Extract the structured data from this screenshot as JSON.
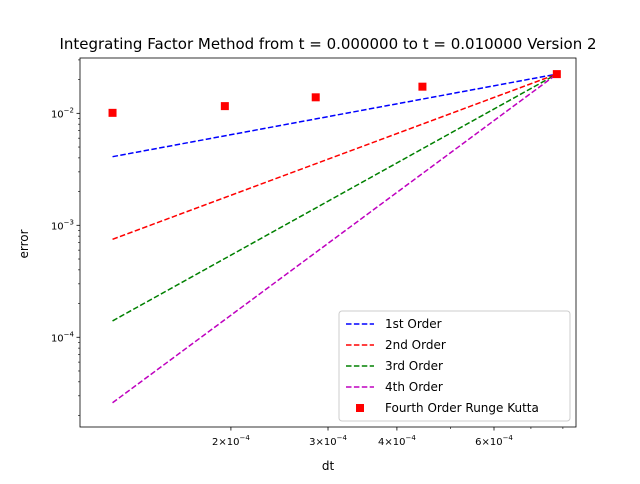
{
  "chart_data": {
    "type": "scatter",
    "title": "Integrating Factor Method from t = 0.000000 to t = 0.010000 Version 2",
    "xlabel": "dt",
    "ylabel": "error",
    "xscale": "log",
    "yscale": "log",
    "xlim": [
      0.0001065,
      0.000845
    ],
    "ylim": [
      1.58e-05,
      0.0312
    ],
    "grid": false,
    "legend_position": "lower-right",
    "x_ticks": [
      {
        "value": 0.0002,
        "base": "2×10",
        "exp": "−4"
      },
      {
        "value": 0.0003,
        "base": "3×10",
        "exp": "−4"
      },
      {
        "value": 0.0004,
        "base": "4×10",
        "exp": "−4"
      },
      {
        "value": 0.0006,
        "base": "6×10",
        "exp": "−4"
      }
    ],
    "x_minor_ticks": [
      0.0005,
      0.0007,
      0.0008
    ],
    "y_ticks": [
      {
        "value": 0.0001,
        "base": "10",
        "exp": "−4"
      },
      {
        "value": 0.001,
        "base": "10",
        "exp": "−3"
      },
      {
        "value": 0.01,
        "base": "10",
        "exp": "−2"
      }
    ],
    "series": [
      {
        "name": "1st Order",
        "kind": "line",
        "style": "dashed",
        "color": "#0000ff",
        "x": [
          0.000122,
          0.00078
        ],
        "y": [
          0.0041,
          0.0224
        ]
      },
      {
        "name": "2nd Order",
        "kind": "line",
        "style": "dashed",
        "color": "#ff0000",
        "x": [
          0.000122,
          0.00078
        ],
        "y": [
          0.00075,
          0.0224
        ]
      },
      {
        "name": "3rd Order",
        "kind": "line",
        "style": "dashed",
        "color": "#008000",
        "x": [
          0.000122,
          0.00078
        ],
        "y": [
          0.00014,
          0.0224
        ]
      },
      {
        "name": "4th Order",
        "kind": "line",
        "style": "dashed",
        "color": "#bf00bf",
        "x": [
          0.000122,
          0.00078
        ],
        "y": [
          2.6e-05,
          0.0224
        ]
      },
      {
        "name": "Fourth Order Runge Kutta",
        "kind": "marker",
        "marker": "square",
        "color": "#ff0000",
        "x": [
          0.000122,
          0.000195,
          0.000285,
          0.000445,
          0.00078
        ],
        "y": [
          0.0101,
          0.0116,
          0.0139,
          0.0173,
          0.0224
        ]
      }
    ]
  }
}
